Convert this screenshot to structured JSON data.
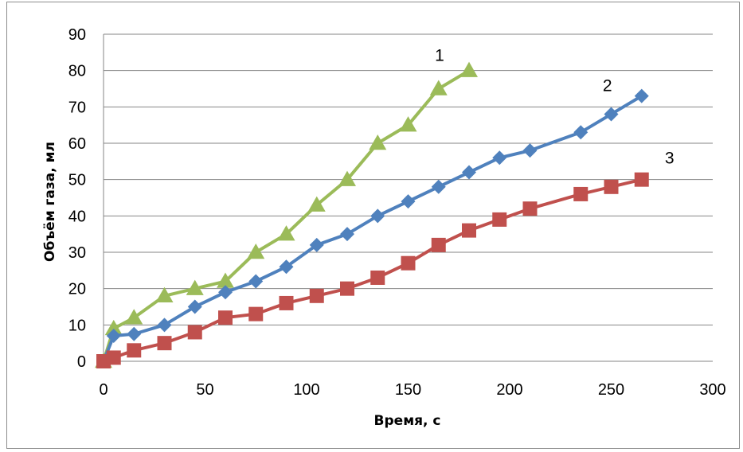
{
  "chart_data": {
    "type": "line",
    "xlabel": "Время, с",
    "ylabel": "Объём газа, мл",
    "xlim": [
      0,
      300
    ],
    "ylim": [
      0,
      90
    ],
    "x_ticks": [
      0,
      50,
      100,
      150,
      200,
      250,
      300
    ],
    "y_ticks": [
      0,
      10,
      20,
      30,
      40,
      50,
      60,
      70,
      80,
      90
    ],
    "grid": "horizontal",
    "series": [
      {
        "label": "1",
        "color": "#9bbb59",
        "marker": "triangle",
        "points": [
          [
            0,
            0
          ],
          [
            5,
            9
          ],
          [
            15,
            12
          ],
          [
            30,
            18
          ],
          [
            45,
            20
          ],
          [
            60,
            22
          ],
          [
            75,
            30
          ],
          [
            90,
            35
          ],
          [
            105,
            43
          ],
          [
            120,
            50
          ],
          [
            135,
            60
          ],
          [
            150,
            65
          ],
          [
            165,
            75
          ],
          [
            180,
            80
          ]
        ]
      },
      {
        "label": "2",
        "color": "#4f81bd",
        "marker": "diamond",
        "points": [
          [
            0,
            0
          ],
          [
            5,
            7
          ],
          [
            15,
            7.5
          ],
          [
            30,
            10
          ],
          [
            45,
            15
          ],
          [
            60,
            19
          ],
          [
            75,
            22
          ],
          [
            90,
            26
          ],
          [
            105,
            32
          ],
          [
            120,
            35
          ],
          [
            135,
            40
          ],
          [
            150,
            44
          ],
          [
            165,
            48
          ],
          [
            180,
            52
          ],
          [
            195,
            56
          ],
          [
            210,
            58
          ],
          [
            235,
            63
          ],
          [
            250,
            68
          ],
          [
            265,
            73
          ]
        ]
      },
      {
        "label": "3",
        "color": "#c0504d",
        "marker": "square",
        "points": [
          [
            0,
            0
          ],
          [
            5,
            1
          ],
          [
            15,
            3
          ],
          [
            30,
            5
          ],
          [
            45,
            8
          ],
          [
            60,
            12
          ],
          [
            75,
            13
          ],
          [
            90,
            16
          ],
          [
            105,
            18
          ],
          [
            120,
            20
          ],
          [
            135,
            23
          ],
          [
            150,
            27
          ],
          [
            165,
            32
          ],
          [
            180,
            36
          ],
          [
            195,
            39
          ],
          [
            210,
            42
          ],
          [
            235,
            46
          ],
          [
            250,
            48
          ],
          [
            265,
            50
          ]
        ]
      }
    ]
  }
}
